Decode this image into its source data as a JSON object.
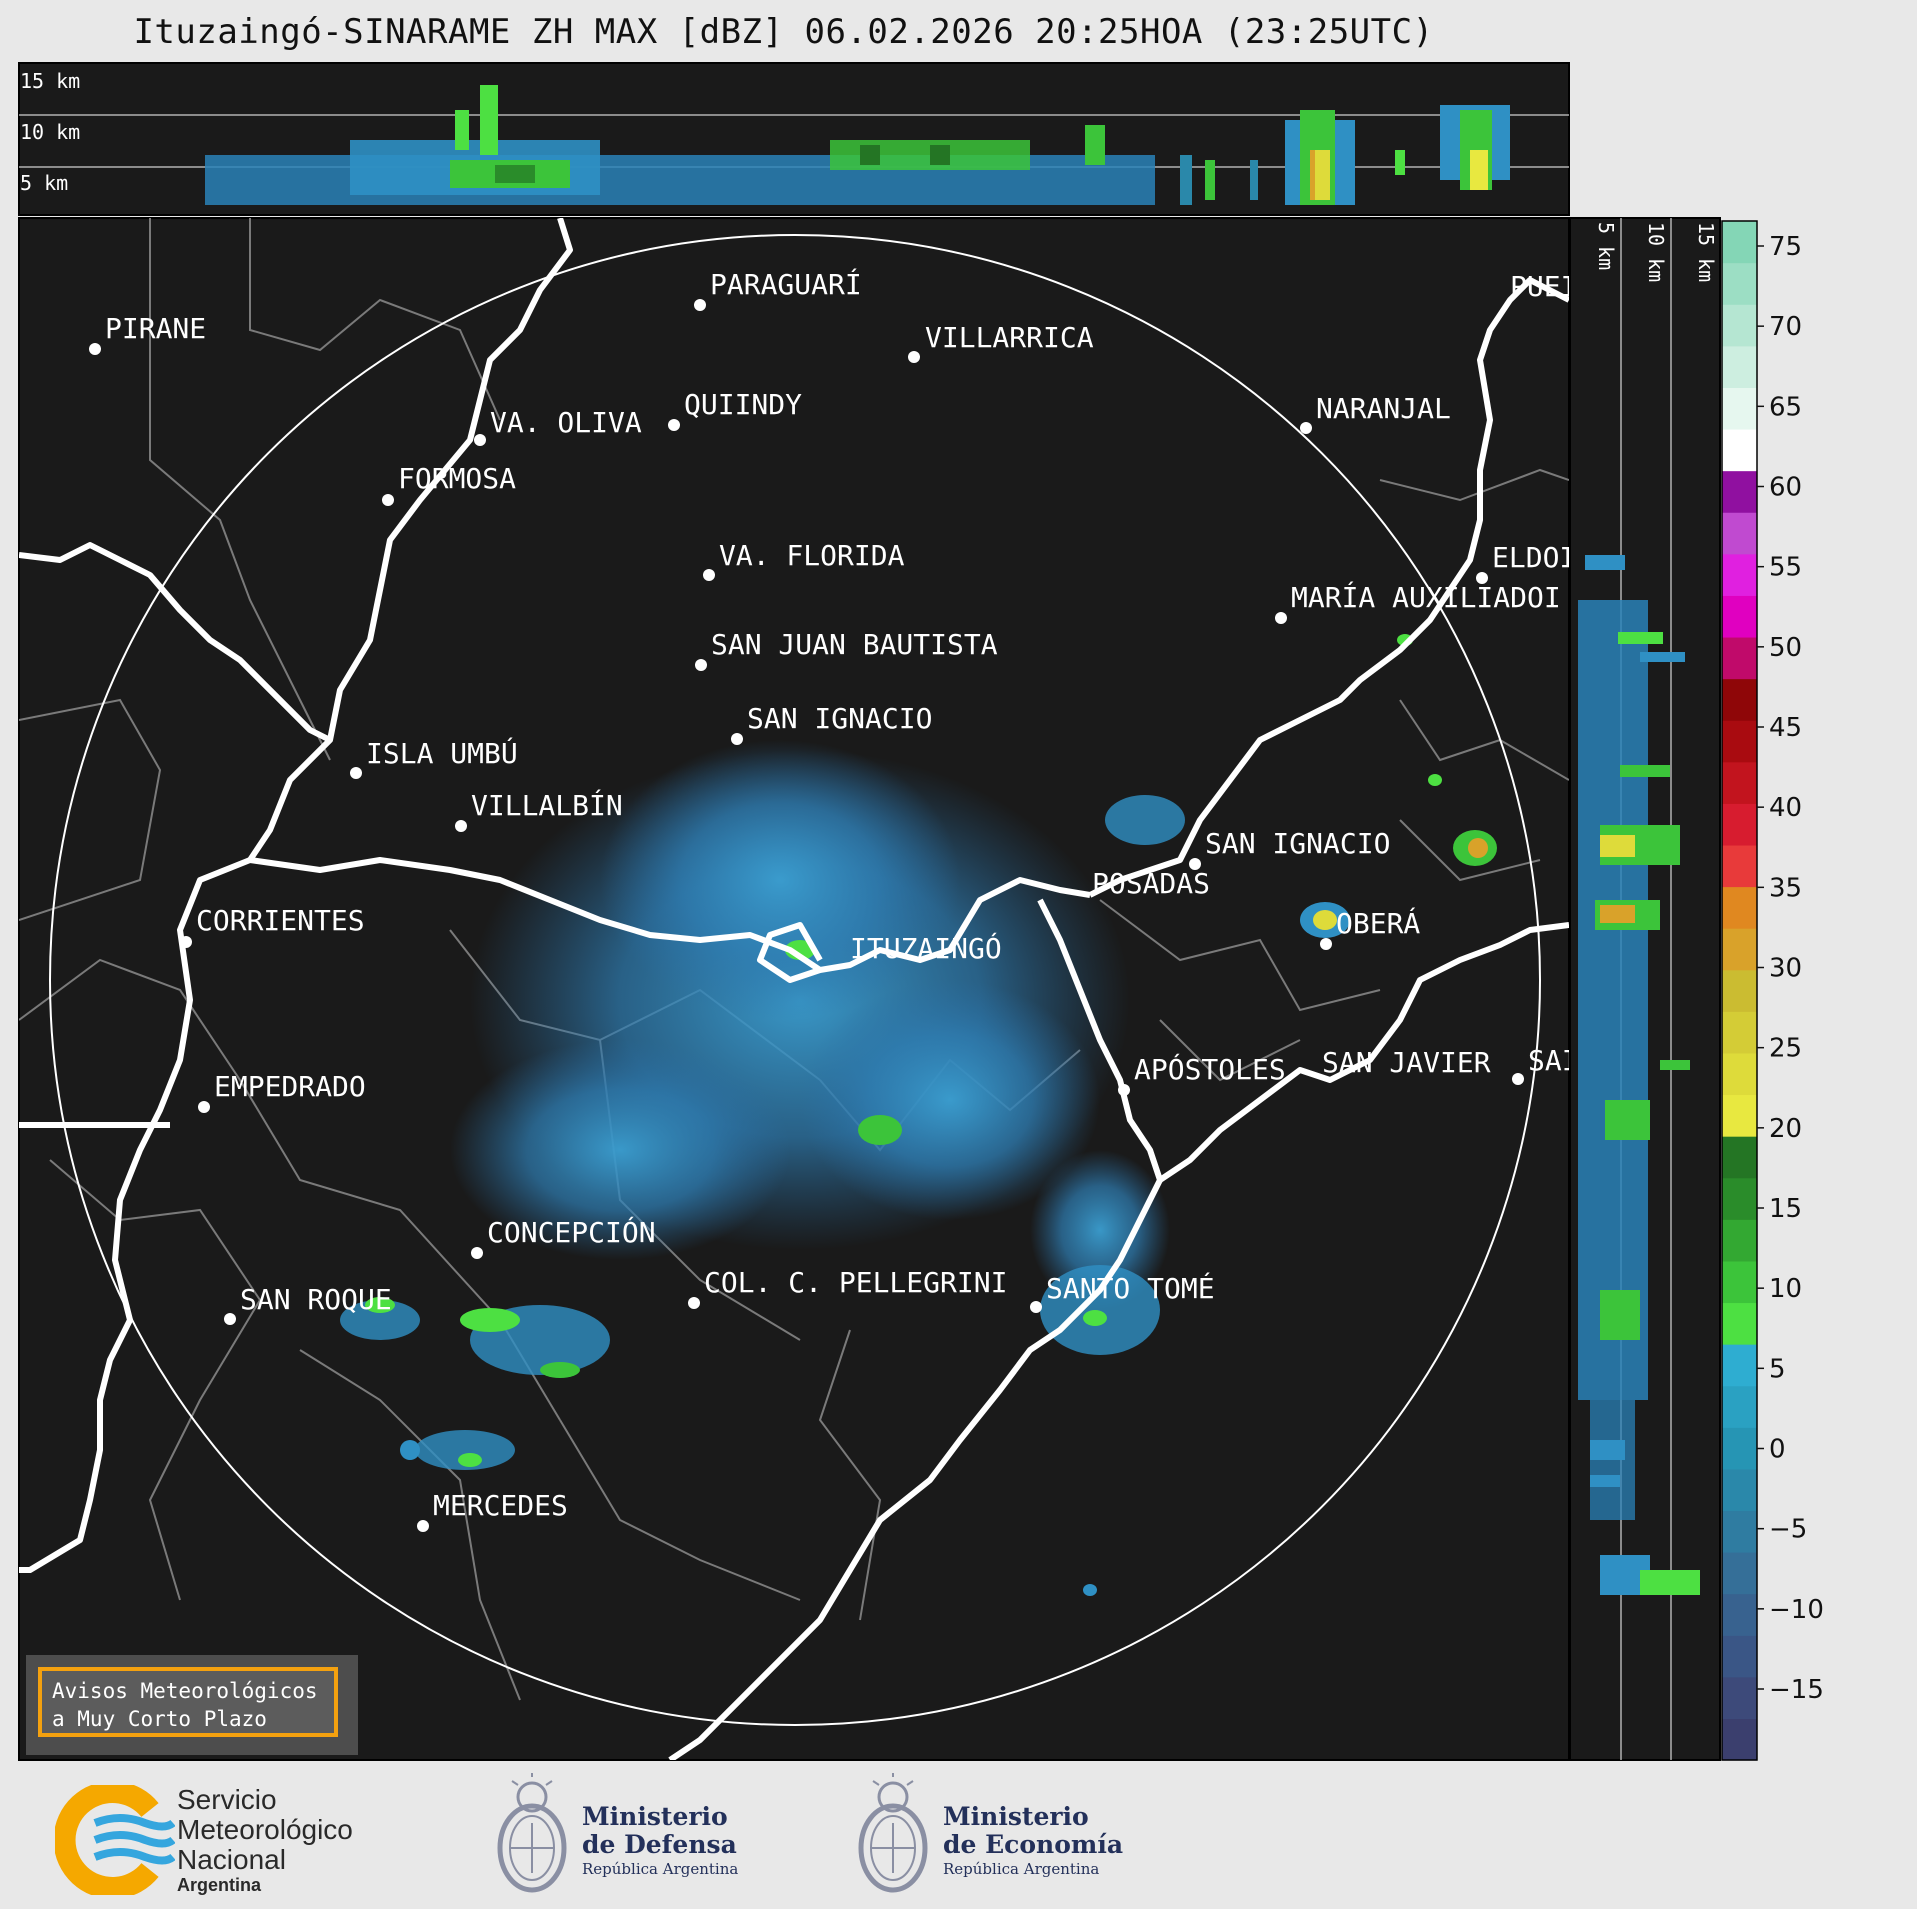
{
  "title": "Ituzaingó-SINARAME ZH MAX [dBZ] 06.02.2026 20:25HOA (23:25UTC)",
  "top_profile": {
    "height_labels": [
      "15 km",
      "10 km",
      "5 km"
    ]
  },
  "side_profile": {
    "height_labels": [
      "5 km",
      "10 km",
      "15 km"
    ]
  },
  "cities": [
    {
      "name": "PIRANE"
    },
    {
      "name": "PARAGUARÍ"
    },
    {
      "name": "VILLARRICA"
    },
    {
      "name": "QUIINDY"
    },
    {
      "name": "VA. OLIVA"
    },
    {
      "name": "FORMOSA"
    },
    {
      "name": "NARANJAL"
    },
    {
      "name": "PUEI"
    },
    {
      "name": "VA. FLORIDA"
    },
    {
      "name": "ELDOI"
    },
    {
      "name": "MARÍA AUXILIADOI"
    },
    {
      "name": "SAN JUAN BAUTISTA"
    },
    {
      "name": "SAN IGNACIO"
    },
    {
      "name": "ISLA UMBÚ"
    },
    {
      "name": "VILLALBÍN"
    },
    {
      "name": "SAN IGNACIO"
    },
    {
      "name": "POSADAS"
    },
    {
      "name": "CORRIENTES"
    },
    {
      "name": "ITUZAINGÓ"
    },
    {
      "name": "OBERÁ"
    },
    {
      "name": "EMPEDRADO"
    },
    {
      "name": "APÓSTOLES"
    },
    {
      "name": "SAN JAVIER"
    },
    {
      "name": "SAI"
    },
    {
      "name": "CONCEPCIÓN"
    },
    {
      "name": "COL. C. PELLEGRINI"
    },
    {
      "name": "SANTO TOMÉ"
    },
    {
      "name": "SAN ROQUE"
    },
    {
      "name": "MERCEDES"
    }
  ],
  "colorbar": {
    "unit": "dBZ",
    "ticks": [
      "75",
      "70",
      "65",
      "60",
      "55",
      "50",
      "45",
      "40",
      "35",
      "30",
      "25",
      "20",
      "15",
      "10",
      "5",
      "0",
      "−5",
      "−10",
      "−15"
    ],
    "colors": [
      "#3b3f6e",
      "#3d4a7a",
      "#3a5686",
      "#38628f",
      "#356f98",
      "#2f7ca1",
      "#2a88aa",
      "#2695b4",
      "#2aa1c2",
      "#2eadd1",
      "#4de042",
      "#3cc43a",
      "#33a832",
      "#2a8c2a",
      "#247524",
      "#e8e840",
      "#dedb3a",
      "#d4cc36",
      "#cbbc31",
      "#d9a22a",
      "#e08820",
      "#e83a3a",
      "#d71c2f",
      "#c2141e",
      "#a90b10",
      "#8f0608",
      "#c00a6a",
      "#e000c0",
      "#e020e0",
      "#c04ad0",
      "#9010a0",
      "#ffffff",
      "#e6f7ef",
      "#cdeee0",
      "#b5e6d2",
      "#9cdec4",
      "#84d6b6"
    ]
  },
  "warning_box": {
    "line1": "Avisos Meteorológicos",
    "line2": "a Muy Corto Plazo"
  },
  "logos": {
    "smn": {
      "line1": "Servicio",
      "line2": "Meteorológico",
      "line3": "Nacional",
      "line4": "Argentina"
    },
    "defensa": {
      "line1": "Ministerio",
      "line2": "de Defensa",
      "line3": "República Argentina"
    },
    "economia": {
      "line1": "Ministerio",
      "line2": "de Economía",
      "line3": "República Argentina"
    }
  }
}
